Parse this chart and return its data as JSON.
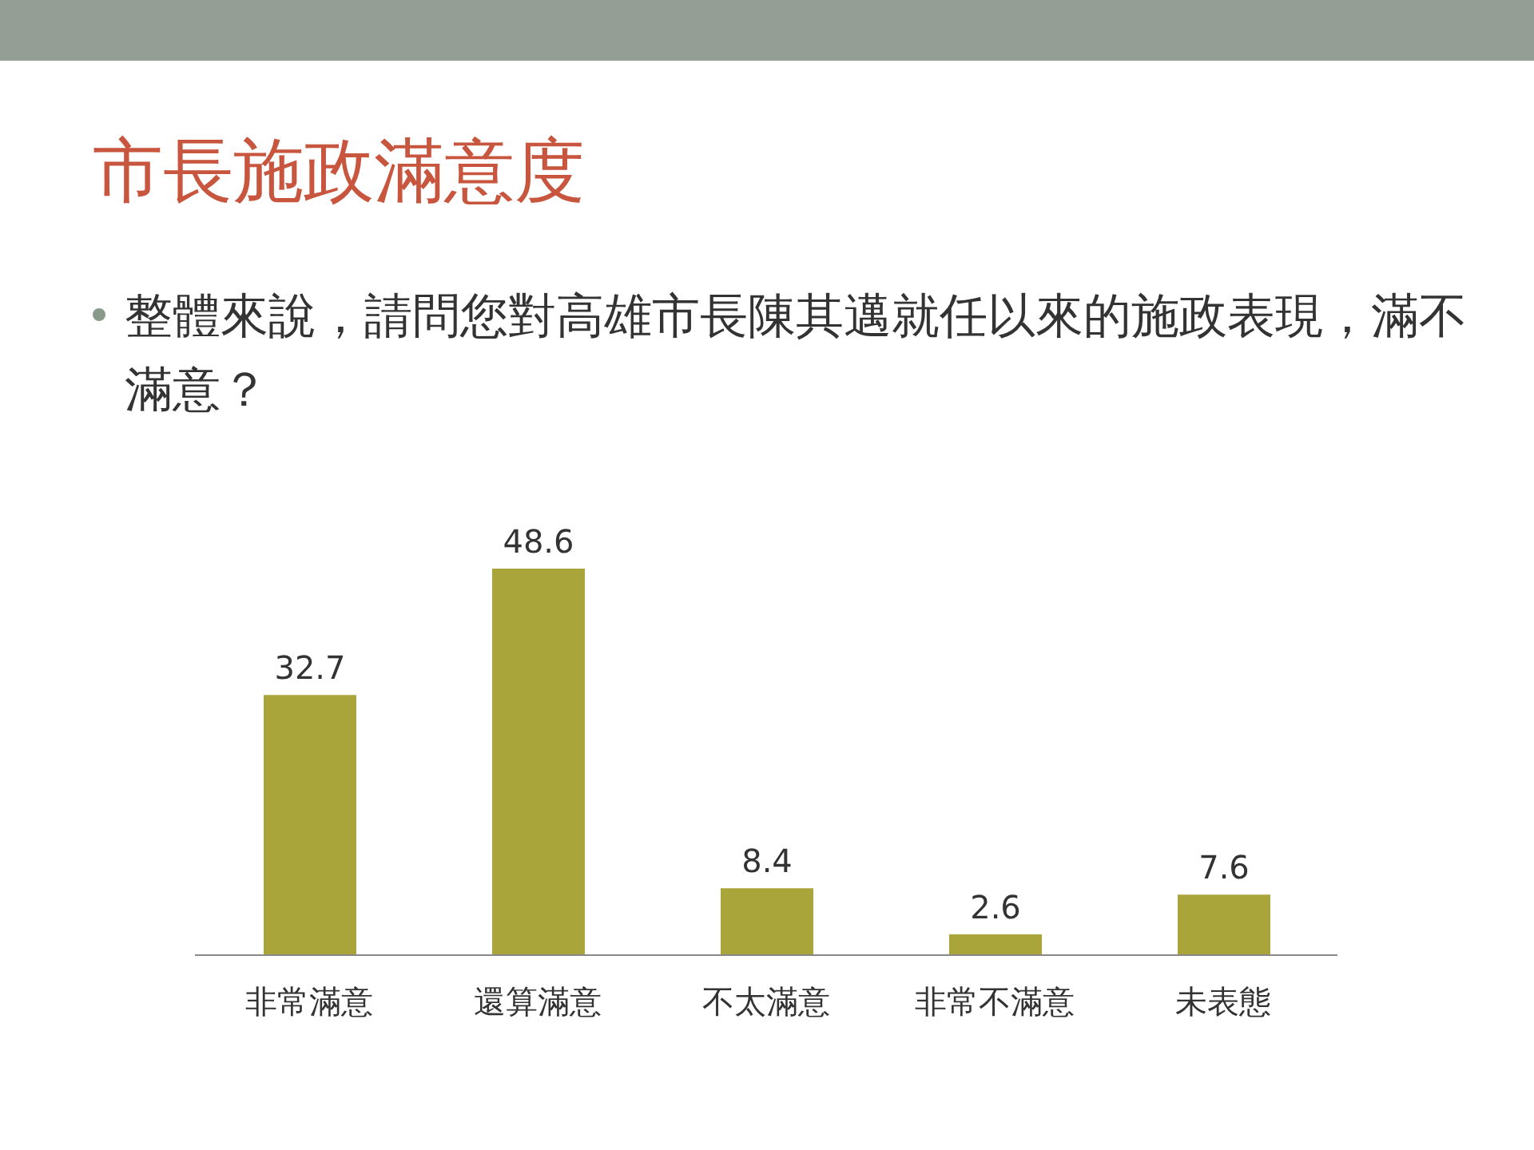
{
  "chart_data": {
    "type": "bar",
    "title": "市長施政滿意度",
    "subtitle": "整體來說，請問您對高雄市長陳其邁就任以來的施政表現，滿不滿意？",
    "categories": [
      "非常滿意",
      "還算滿意",
      "不太滿意",
      "非常不滿意",
      "未表態"
    ],
    "values": [
      32.7,
      48.6,
      8.4,
      2.6,
      7.6
    ],
    "color": "#aaa53a",
    "data_labels": true,
    "grid": false,
    "legend": false
  }
}
